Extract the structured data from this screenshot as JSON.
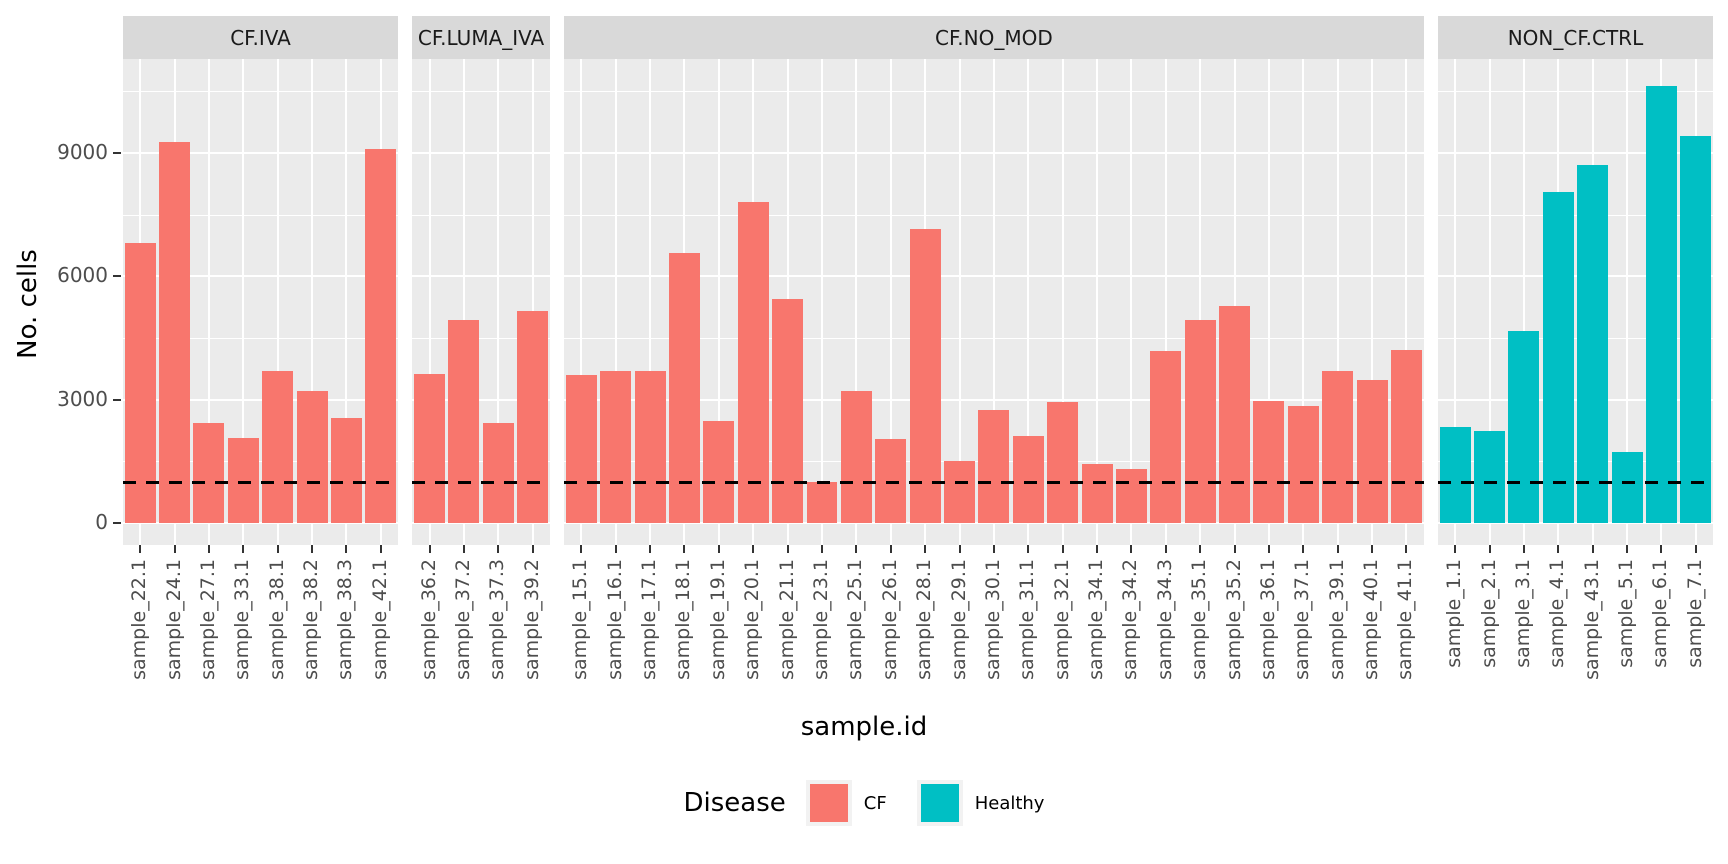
{
  "chart_data": {
    "type": "bar",
    "title": "",
    "xlabel": "sample.id",
    "ylabel": "No. cells",
    "y_ticks": [
      0,
      3000,
      6000,
      9000
    ],
    "y_minor_ticks": [
      1500,
      4500,
      7500,
      10500
    ],
    "ylim": [
      -535,
      11170
    ],
    "grid": true,
    "panel_background": "#EBEBEB",
    "strip_background": "#D9D9D9",
    "gridline_color": "#FFFFFF",
    "threshold_line": {
      "y": 1000,
      "style": "dashed",
      "color": "#000000"
    },
    "legend": {
      "title": "Disease",
      "position": "bottom",
      "entries": [
        {
          "label": "CF",
          "color": "#F8766D"
        },
        {
          "label": "Healthy",
          "color": "#00BFC4"
        }
      ]
    },
    "facets": [
      {
        "label": "CF.IVA",
        "group": "CF",
        "categories": [
          "sample_22.1",
          "sample_24.1",
          "sample_27.1",
          "sample_33.1",
          "sample_38.1",
          "sample_38.2",
          "sample_38.3",
          "sample_42.1"
        ],
        "values": [
          6820,
          9280,
          2430,
          2080,
          3690,
          3210,
          2550,
          9090
        ]
      },
      {
        "label": "CF.LUMA_IVA",
        "group": "CF",
        "categories": [
          "sample_36.2",
          "sample_37.2",
          "sample_37.3",
          "sample_39.2"
        ],
        "values": [
          3620,
          4940,
          2440,
          5160
        ]
      },
      {
        "label": "CF.NO_MOD",
        "group": "CF",
        "categories": [
          "sample_15.1",
          "sample_16.1",
          "sample_17.1",
          "sample_18.1",
          "sample_19.1",
          "sample_20.1",
          "sample_21.1",
          "sample_23.1",
          "sample_25.1",
          "sample_26.1",
          "sample_28.1",
          "sample_29.1",
          "sample_30.1",
          "sample_31.1",
          "sample_32.1",
          "sample_34.1",
          "sample_34.2",
          "sample_34.3",
          "sample_35.1",
          "sample_35.2",
          "sample_36.1",
          "sample_37.1",
          "sample_39.1",
          "sample_40.1",
          "sample_41.1"
        ],
        "values": [
          3590,
          3690,
          3710,
          6560,
          2490,
          7800,
          5450,
          1000,
          3220,
          2050,
          7160,
          1520,
          2740,
          2120,
          2950,
          1440,
          1320,
          4190,
          4950,
          5290,
          2980,
          2850,
          3710,
          3470,
          4220
        ]
      },
      {
        "label": "NON_CF.CTRL",
        "group": "Healthy",
        "categories": [
          "sample_1.1",
          "sample_2.1",
          "sample_3.1",
          "sample_4.1",
          "sample_43.1",
          "sample_5.1",
          "sample_6.1",
          "sample_7.1"
        ],
        "values": [
          2340,
          2230,
          4680,
          8060,
          8700,
          1720,
          10630,
          9410
        ]
      }
    ]
  }
}
